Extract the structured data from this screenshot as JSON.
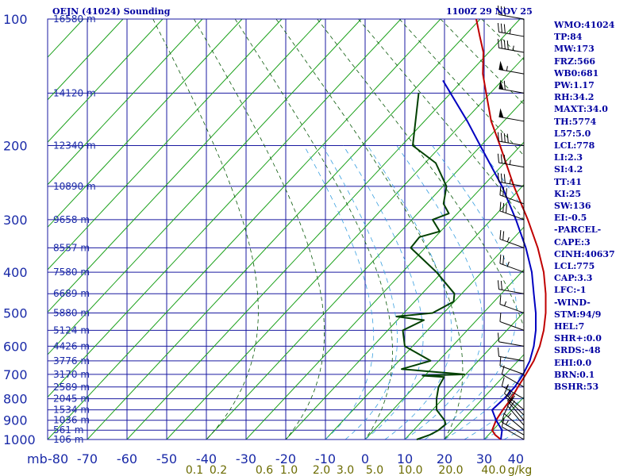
{
  "header": {
    "station": "OEJN (41024) Sounding",
    "time": "1100Z 29 NOV 25"
  },
  "colors": {
    "isobar": "#1a1aa0",
    "isotherm": "#1a1aa0",
    "skewed_isotherm": "#1aa01a",
    "dry_adiabat": "#0a5a0a",
    "moist_adiabat": "#3aa0e0",
    "temperature": "#c00000",
    "dewpoint": "#004000",
    "parcel": "#0000c0",
    "axis_label": "#1a2aa8",
    "mixing_ratio_label": "#6b6b00",
    "stats_text": "#0000a0"
  },
  "chart_data": {
    "type": "line",
    "title": "OEJN (41024) Sounding",
    "xlabel": "",
    "ylabel": "mb",
    "grid": true,
    "pressure_axis": {
      "label": "mb",
      "levels": [
        100,
        200,
        300,
        400,
        500,
        600,
        700,
        800,
        900,
        1000
      ]
    },
    "temperature_axis": {
      "ticks": [
        -80,
        -70,
        -60,
        -50,
        -40,
        -30,
        -20,
        -10,
        0,
        10,
        20,
        30,
        40
      ]
    },
    "mixing_ratio_labels": [
      "0.1",
      "0.2",
      "0.6",
      "1.0",
      "2.0",
      "3.0",
      "5.0",
      "10.0",
      "20.0",
      "40.0",
      "g/kg"
    ],
    "height_labels": [
      {
        "p": 100,
        "text": "16580 m"
      },
      {
        "p": 150,
        "text": "14120 m"
      },
      {
        "p": 200,
        "text": "12340 m"
      },
      {
        "p": 250,
        "text": "10890 m"
      },
      {
        "p": 300,
        "text": "9658 m"
      },
      {
        "p": 350,
        "text": "8557 m"
      },
      {
        "p": 400,
        "text": "7580 m"
      },
      {
        "p": 450,
        "text": "6689 m"
      },
      {
        "p": 500,
        "text": "5880 m"
      },
      {
        "p": 550,
        "text": "5124 m"
      },
      {
        "p": 600,
        "text": "4426 m"
      },
      {
        "p": 650,
        "text": "3776 m"
      },
      {
        "p": 700,
        "text": "3170 m"
      },
      {
        "p": 750,
        "text": "2589 m"
      },
      {
        "p": 800,
        "text": "2045 m"
      },
      {
        "p": 850,
        "text": "1534 m"
      },
      {
        "p": 900,
        "text": "1036 m"
      },
      {
        "p": 950,
        "text": "561 m"
      },
      {
        "p": 1000,
        "text": "106 m"
      }
    ],
    "series": [
      {
        "name": "temperature",
        "points": [
          [
            1000,
            34.2
          ],
          [
            975,
            30.0
          ],
          [
            950,
            26.5
          ],
          [
            900,
            22.0
          ],
          [
            850,
            18.2
          ],
          [
            800,
            14.8
          ],
          [
            750,
            11.0
          ],
          [
            700,
            7.5
          ],
          [
            650,
            4.0
          ],
          [
            600,
            0.0
          ],
          [
            550,
            -4.5
          ],
          [
            500,
            -9.5
          ],
          [
            450,
            -15.0
          ],
          [
            400,
            -21.0
          ],
          [
            350,
            -28.0
          ],
          [
            300,
            -36.0
          ],
          [
            250,
            -45.0
          ],
          [
            200,
            -54.0
          ],
          [
            175,
            -59.0
          ],
          [
            150,
            -63.0
          ],
          [
            135,
            -65.5
          ],
          [
            120,
            -67.0
          ],
          [
            110,
            -69.0
          ],
          [
            100,
            -71.0
          ]
        ]
      },
      {
        "name": "dewpoint",
        "points": [
          [
            1000,
            13.0
          ],
          [
            975,
            13.5
          ],
          [
            950,
            13.0
          ],
          [
            920,
            11.5
          ],
          [
            900,
            9.0
          ],
          [
            850,
            1.5
          ],
          [
            800,
            -4.0
          ],
          [
            750,
            -9.0
          ],
          [
            710,
            -12.0
          ],
          [
            705,
            -18.0
          ],
          [
            700,
            -8.0
          ],
          [
            690,
            -17.0
          ],
          [
            680,
            -26.0
          ],
          [
            650,
            -22.0
          ],
          [
            600,
            -34.0
          ],
          [
            550,
            -40.0
          ],
          [
            520,
            -38.0
          ],
          [
            510,
            -46.0
          ],
          [
            500,
            -38.0
          ],
          [
            470,
            -36.0
          ],
          [
            450,
            -38.0
          ],
          [
            400,
            -48.0
          ],
          [
            350,
            -60.0
          ],
          [
            330,
            -60.0
          ],
          [
            320,
            -56.0
          ],
          [
            300,
            -60.0
          ],
          [
            290,
            -57.0
          ],
          [
            275,
            -60.0
          ],
          [
            250,
            -62.0
          ],
          [
            220,
            -68.0
          ],
          [
            200,
            -76.0
          ],
          [
            150,
            -80.0
          ]
        ]
      },
      {
        "name": "parcel",
        "points": [
          [
            1000,
            34.2
          ],
          [
            950,
            29.0
          ],
          [
            900,
            22.0
          ],
          [
            850,
            15.5
          ],
          [
            800,
            13.0
          ],
          [
            750,
            10.2
          ],
          [
            700,
            6.8
          ],
          [
            650,
            3.0
          ],
          [
            600,
            -1.5
          ],
          [
            550,
            -6.5
          ],
          [
            500,
            -12.0
          ],
          [
            450,
            -18.0
          ],
          [
            400,
            -24.0
          ],
          [
            350,
            -31.0
          ],
          [
            300,
            -39.0
          ],
          [
            250,
            -48.0
          ],
          [
            200,
            -59.0
          ],
          [
            175,
            -65.0
          ],
          [
            150,
            -72.0
          ],
          [
            140,
            -75.0
          ]
        ]
      }
    ],
    "wind_barbs": [
      {
        "p": 1000,
        "dir": 300,
        "spd": 10
      },
      {
        "p": 975,
        "dir": 300,
        "spd": 15
      },
      {
        "p": 950,
        "dir": 310,
        "spd": 15
      },
      {
        "p": 925,
        "dir": 320,
        "spd": 20
      },
      {
        "p": 900,
        "dir": 320,
        "spd": 20
      },
      {
        "p": 875,
        "dir": 315,
        "spd": 15
      },
      {
        "p": 850,
        "dir": 310,
        "spd": 15
      },
      {
        "p": 800,
        "dir": 300,
        "spd": 15
      },
      {
        "p": 750,
        "dir": 300,
        "spd": 10
      },
      {
        "p": 700,
        "dir": 290,
        "spd": 10
      },
      {
        "p": 650,
        "dir": 280,
        "spd": 10
      },
      {
        "p": 600,
        "dir": 280,
        "spd": 10
      },
      {
        "p": 550,
        "dir": 290,
        "spd": 10
      },
      {
        "p": 500,
        "dir": 290,
        "spd": 15
      },
      {
        "p": 450,
        "dir": 280,
        "spd": 20
      },
      {
        "p": 400,
        "dir": 290,
        "spd": 25
      },
      {
        "p": 350,
        "dir": 290,
        "spd": 25
      },
      {
        "p": 300,
        "dir": 290,
        "spd": 30
      },
      {
        "p": 275,
        "dir": 290,
        "spd": 30
      },
      {
        "p": 250,
        "dir": 280,
        "spd": 35
      },
      {
        "p": 225,
        "dir": 280,
        "spd": 35
      },
      {
        "p": 200,
        "dir": 280,
        "spd": 40
      },
      {
        "p": 175,
        "dir": 280,
        "spd": 50
      },
      {
        "p": 150,
        "dir": 280,
        "spd": 60
      },
      {
        "p": 135,
        "dir": 280,
        "spd": 55
      },
      {
        "p": 120,
        "dir": 280,
        "spd": 45
      },
      {
        "p": 110,
        "dir": 280,
        "spd": 35
      },
      {
        "p": 100,
        "dir": 280,
        "spd": 30
      }
    ]
  },
  "stats": [
    "WMO:41024",
    "TP:84",
    "MW:173",
    "FRZ:566",
    "WB0:681",
    "PW:1.17",
    "RH:34.2",
    "MAXT:34.0",
    "TH:5774",
    "L57:5.0",
    "LCL:778",
    "LI:2.3",
    "SI:4.2",
    "TT:41",
    "KI:25",
    "SW:136",
    "EI:-0.5",
    "-PARCEL-",
    "CAPE:3",
    "CINH:40637",
    "LCL:775",
    "CAP:3.3",
    "LFC:-1",
    "-WIND-",
    "STM:94/9",
    "HEL:7",
    "SHR+:0.0",
    "SRDS:-48",
    "EHI:0.0",
    "BRN:0.1",
    "BSHR:53"
  ]
}
